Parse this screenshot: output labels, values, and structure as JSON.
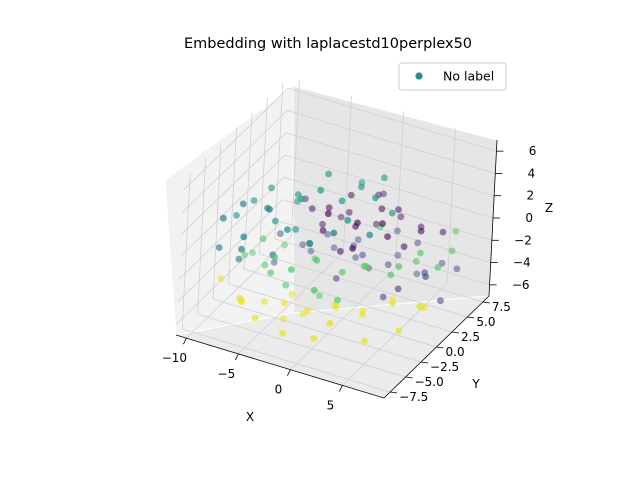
{
  "chart_data": {
    "type": "scatter",
    "projection": "3d",
    "title": "Embedding with laplacestd10perplex50",
    "xlabel": "X",
    "ylabel": "Y",
    "zlabel": "Z",
    "xlim": [
      -11,
      9
    ],
    "ylim": [
      -8.5,
      8.5
    ],
    "zlim": [
      -7,
      7
    ],
    "xticks": [
      -10,
      -5,
      0,
      5
    ],
    "yticks": [
      -7.5,
      -5.0,
      -2.5,
      0.0,
      2.5,
      5.0,
      7.5
    ],
    "zticks": [
      -6,
      -4,
      -2,
      0,
      2,
      4,
      6
    ],
    "xtick_labels": [
      "−10",
      "−5",
      "0",
      "5"
    ],
    "ytick_labels": [
      "−7.5",
      "−5.0",
      "−2.5",
      "0.0",
      "2.5",
      "5.0",
      "7.5"
    ],
    "ztick_labels": [
      "−6",
      "−4",
      "−2",
      "0",
      "2",
      "4",
      "6"
    ],
    "grid": true,
    "legend": {
      "entries": [
        "No label"
      ],
      "placement": "upper right",
      "color": "#21918c"
    },
    "colormap": "viridis",
    "series": [
      {
        "name": "No label",
        "points": [
          [
            -8.2,
            -6.5,
            3.2,
            0.45
          ],
          [
            -7.1,
            -5.2,
            4.1,
            0.45
          ],
          [
            -6.0,
            -6.8,
            2.3,
            0.45
          ],
          [
            -5.4,
            -4.1,
            3.6,
            0.45
          ],
          [
            -4.2,
            -5.9,
            4.8,
            0.45
          ],
          [
            -8.8,
            -3.2,
            1.5,
            0.5
          ],
          [
            -7.6,
            -2.5,
            2.8,
            0.5
          ],
          [
            -6.4,
            -1.8,
            3.9,
            0.5
          ],
          [
            -5.2,
            -3.0,
            1.9,
            0.5
          ],
          [
            -3.6,
            -2.2,
            4.3,
            0.5
          ],
          [
            -2.0,
            -4.5,
            5.6,
            0.55
          ],
          [
            -0.6,
            -3.8,
            6.4,
            0.55
          ],
          [
            0.8,
            -2.6,
            5.2,
            0.55
          ],
          [
            2.2,
            -4.0,
            4.6,
            0.55
          ],
          [
            3.5,
            -1.8,
            5.8,
            0.55
          ],
          [
            -1.5,
            -1.0,
            6.1,
            0.5
          ],
          [
            1.0,
            0.2,
            5.0,
            0.5
          ],
          [
            -9.0,
            -5.5,
            -0.2,
            0.45
          ],
          [
            -7.8,
            -4.2,
            -1.6,
            0.45
          ],
          [
            -6.6,
            -6.0,
            0.6,
            0.45
          ],
          [
            -5.0,
            -3.5,
            -0.8,
            0.4
          ],
          [
            -3.8,
            -2.0,
            1.0,
            0.5
          ],
          [
            4.6,
            -0.8,
            4.2,
            0.55
          ],
          [
            2.8,
            0.8,
            6.0,
            0.55
          ],
          [
            -2.8,
            -5.2,
            3.0,
            0.5
          ],
          [
            1.5,
            -5.0,
            3.8,
            0.45
          ],
          [
            0.3,
            1.5,
            4.5,
            0.55
          ],
          [
            -4.6,
            -0.5,
            2.5,
            0.5
          ],
          [
            -0.3,
            -5.8,
            2.8,
            0.5
          ],
          [
            3.8,
            -3.0,
            3.2,
            0.5
          ],
          [
            -2.5,
            1.2,
            1.6,
            0.0
          ],
          [
            -1.2,
            2.5,
            2.4,
            0.0
          ],
          [
            0.2,
            1.0,
            0.8,
            0.0
          ],
          [
            1.6,
            2.8,
            1.8,
            0.0
          ],
          [
            3.0,
            1.5,
            0.4,
            0.0
          ],
          [
            -3.5,
            2.0,
            -0.6,
            0.05
          ],
          [
            -1.8,
            3.4,
            0.2,
            0.0
          ],
          [
            0.6,
            3.8,
            -0.4,
            0.05
          ],
          [
            2.4,
            4.2,
            1.2,
            0.0
          ],
          [
            4.0,
            2.6,
            -0.8,
            0.05
          ],
          [
            -0.8,
            0.4,
            -1.4,
            0.05
          ],
          [
            1.2,
            -0.5,
            2.2,
            0.0
          ],
          [
            -2.2,
            -0.2,
            0.4,
            0.0
          ],
          [
            5.2,
            3.2,
            0.6,
            0.0
          ],
          [
            -4.0,
            1.0,
            1.2,
            0.05
          ],
          [
            3.4,
            -0.2,
            2.6,
            0.05
          ],
          [
            0.0,
            5.0,
            1.4,
            0.0
          ],
          [
            -3.0,
            4.2,
            -1.0,
            0.05
          ],
          [
            2.0,
            5.4,
            -0.2,
            0.0
          ],
          [
            -1.0,
            -1.6,
            3.0,
            0.0
          ],
          [
            4.4,
            4.6,
            0.0,
            0.05
          ],
          [
            1.8,
            -2.2,
            1.0,
            0.05
          ],
          [
            6.0,
            5.5,
            -0.5,
            0.05
          ],
          [
            -5.8,
            3.0,
            0.5,
            0.05
          ],
          [
            -0.2,
            6.2,
            0.8,
            0.05
          ],
          [
            -7.0,
            1.2,
            -2.0,
            0.2
          ],
          [
            -5.5,
            2.4,
            -3.2,
            0.2
          ],
          [
            -3.8,
            3.5,
            -2.4,
            0.22
          ],
          [
            -2.0,
            4.8,
            -3.6,
            0.2
          ],
          [
            0.0,
            2.8,
            -2.8,
            0.22
          ],
          [
            1.8,
            4.0,
            -3.8,
            0.2
          ],
          [
            3.6,
            5.6,
            -2.2,
            0.2
          ],
          [
            5.4,
            3.8,
            -3.4,
            0.22
          ],
          [
            -6.0,
            4.5,
            -4.4,
            0.2
          ],
          [
            -4.4,
            5.8,
            -5.0,
            0.2
          ],
          [
            -2.6,
            6.6,
            -4.2,
            0.22
          ],
          [
            -0.8,
            5.4,
            -5.6,
            0.2
          ],
          [
            1.0,
            7.0,
            -4.8,
            0.2
          ],
          [
            3.0,
            6.8,
            -5.8,
            0.22
          ],
          [
            5.0,
            7.4,
            -4.6,
            0.2
          ],
          [
            -8.0,
            2.2,
            -5.4,
            0.2
          ],
          [
            -6.8,
            6.2,
            -6.2,
            0.22
          ],
          [
            4.2,
            1.6,
            -4.0,
            0.2
          ],
          [
            6.4,
            2.2,
            -2.6,
            0.22
          ],
          [
            -1.6,
            1.4,
            -4.6,
            0.2
          ],
          [
            2.6,
            2.0,
            -5.4,
            0.22
          ],
          [
            7.0,
            6.4,
            -4.0,
            0.2
          ],
          [
            -3.2,
            7.4,
            -6.4,
            0.2
          ],
          [
            0.4,
            7.8,
            -3.2,
            0.22
          ],
          [
            6.6,
            4.6,
            -6.0,
            0.2
          ],
          [
            -8.5,
            -2.0,
            -2.6,
            0.75
          ],
          [
            -7.2,
            -0.8,
            -3.8,
            0.72
          ],
          [
            -6.0,
            0.2,
            -2.2,
            0.75
          ],
          [
            -4.8,
            -1.4,
            -4.6,
            0.72
          ],
          [
            -3.4,
            0.8,
            -3.0,
            0.75
          ],
          [
            -9.2,
            0.6,
            -4.0,
            0.72
          ],
          [
            -2.0,
            -0.6,
            -5.2,
            0.75
          ],
          [
            -5.4,
            -3.0,
            -2.8,
            0.72
          ],
          [
            -1.2,
            -2.8,
            -0.6,
            0.72
          ],
          [
            0.6,
            -1.6,
            -1.8,
            0.75
          ],
          [
            2.4,
            -0.8,
            -1.2,
            0.75
          ],
          [
            4.2,
            0.2,
            -2.0,
            0.72
          ],
          [
            6.0,
            1.2,
            -0.8,
            0.75
          ],
          [
            7.4,
            2.4,
            -1.6,
            0.72
          ],
          [
            5.6,
            -1.0,
            -0.2,
            0.72
          ],
          [
            3.2,
            -2.6,
            0.0,
            0.75
          ],
          [
            -3.0,
            -3.8,
            -1.4,
            0.72
          ],
          [
            -6.6,
            -2.4,
            -0.4,
            0.72
          ],
          [
            -0.4,
            -4.4,
            -2.2,
            0.72
          ],
          [
            1.4,
            -3.6,
            -3.0,
            0.75
          ],
          [
            8.0,
            3.6,
            -0.6,
            0.72
          ],
          [
            6.8,
            0.4,
            0.6,
            0.75
          ],
          [
            -4.2,
            -4.6,
            -0.2,
            0.72
          ],
          [
            2.2,
            1.6,
            1.0,
            0.72
          ],
          [
            7.6,
            4.8,
            0.4,
            0.75
          ],
          [
            -8.0,
            -3.4,
            -5.6,
            0.97
          ],
          [
            -6.4,
            -2.0,
            -6.2,
            0.97
          ],
          [
            -4.6,
            -0.6,
            -5.8,
            0.97
          ],
          [
            -2.8,
            -1.8,
            -6.4,
            0.97
          ],
          [
            -0.8,
            0.0,
            -6.0,
            0.97
          ],
          [
            1.2,
            1.2,
            -6.6,
            0.97
          ],
          [
            3.2,
            2.6,
            -5.8,
            0.97
          ],
          [
            5.2,
            3.6,
            -6.4,
            0.97
          ],
          [
            -7.0,
            -5.0,
            -4.6,
            0.97
          ],
          [
            -5.2,
            -5.6,
            -5.4,
            0.97
          ],
          [
            -3.4,
            -4.0,
            -4.4,
            0.97
          ],
          [
            -1.6,
            -3.2,
            -5.0,
            0.97
          ],
          [
            0.4,
            -2.0,
            -4.8,
            0.97
          ],
          [
            2.4,
            -1.0,
            -5.4,
            0.97
          ],
          [
            4.4,
            0.4,
            -4.6,
            0.97
          ],
          [
            6.4,
            1.6,
            -5.0,
            0.97
          ],
          [
            -9.4,
            -4.2,
            -3.8,
            0.97
          ],
          [
            0.0,
            -4.8,
            -6.2,
            0.97
          ],
          [
            -2.2,
            -6.2,
            -5.6,
            0.97
          ],
          [
            3.6,
            -2.6,
            -6.6,
            0.97
          ],
          [
            5.8,
            -0.8,
            -6.0,
            0.97
          ],
          [
            7.2,
            0.8,
            -4.4,
            0.97
          ],
          [
            -6.0,
            -6.6,
            -3.6,
            0.97
          ],
          [
            1.8,
            -5.4,
            -4.0,
            0.97
          ],
          [
            -4.2,
            -2.6,
            -6.8,
            0.97
          ]
        ]
      }
    ]
  }
}
